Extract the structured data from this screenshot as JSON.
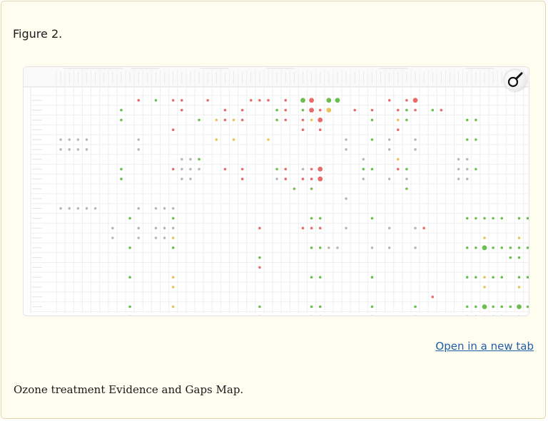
{
  "figure": {
    "label": "Figure 2.",
    "caption": "Ozone treatment Evidence and Gaps Map.",
    "open_link": "Open in a new tab",
    "zoom_icon": "magnifier-icon"
  },
  "colors": {
    "green": "#6cbf4f",
    "red": "#e86b6b",
    "yellow": "#e8c35a",
    "grey": "#b8b8b8",
    "link": "#1f5ea8"
  },
  "chart_data": {
    "type": "scatter",
    "grid": true,
    "dots": [
      [
        1,
        10,
        "r",
        1
      ],
      [
        1,
        12,
        "g",
        1
      ],
      [
        1,
        14,
        "r",
        1
      ],
      [
        1,
        15,
        "r",
        1
      ],
      [
        1,
        18,
        "r",
        1
      ],
      [
        1,
        23,
        "r",
        1
      ],
      [
        1,
        24,
        "r",
        1
      ],
      [
        1,
        25,
        "r",
        1
      ],
      [
        1,
        27,
        "r",
        1
      ],
      [
        1,
        29,
        "g",
        2
      ],
      [
        1,
        30,
        "r",
        2
      ],
      [
        1,
        32,
        "g",
        2
      ],
      [
        1,
        33,
        "g",
        2
      ],
      [
        1,
        39,
        "r",
        1
      ],
      [
        1,
        41,
        "r",
        1
      ],
      [
        1,
        42,
        "r",
        2
      ],
      [
        2,
        8,
        "g",
        1
      ],
      [
        2,
        15,
        "r",
        1
      ],
      [
        2,
        20,
        "r",
        1
      ],
      [
        2,
        22,
        "r",
        1
      ],
      [
        2,
        26,
        "g",
        1
      ],
      [
        2,
        27,
        "r",
        1
      ],
      [
        2,
        29,
        "g",
        1
      ],
      [
        2,
        30,
        "r",
        2
      ],
      [
        2,
        31,
        "r",
        1
      ],
      [
        2,
        32,
        "y",
        2
      ],
      [
        2,
        35,
        "r",
        1
      ],
      [
        2,
        37,
        "r",
        1
      ],
      [
        2,
        40,
        "r",
        1
      ],
      [
        2,
        41,
        "g",
        1
      ],
      [
        2,
        42,
        "r",
        1
      ],
      [
        2,
        44,
        "g",
        1
      ],
      [
        2,
        45,
        "r",
        1
      ],
      [
        3,
        8,
        "g",
        1
      ],
      [
        3,
        17,
        "g",
        1
      ],
      [
        3,
        19,
        "y",
        1
      ],
      [
        3,
        20,
        "r",
        1
      ],
      [
        3,
        21,
        "y",
        1
      ],
      [
        3,
        22,
        "r",
        1
      ],
      [
        3,
        26,
        "g",
        1
      ],
      [
        3,
        27,
        "r",
        1
      ],
      [
        3,
        29,
        "r",
        1
      ],
      [
        3,
        30,
        "y",
        1
      ],
      [
        3,
        31,
        "r",
        2
      ],
      [
        3,
        37,
        "g",
        1
      ],
      [
        3,
        40,
        "y",
        1
      ],
      [
        3,
        41,
        "g",
        1
      ],
      [
        3,
        48,
        "g",
        1
      ],
      [
        3,
        49,
        "g",
        1
      ],
      [
        4,
        14,
        "r",
        1
      ],
      [
        4,
        29,
        "r",
        1
      ],
      [
        4,
        31,
        "r",
        1
      ],
      [
        4,
        40,
        "r",
        1
      ],
      [
        5,
        1,
        "gr",
        1
      ],
      [
        5,
        2,
        "gr",
        1
      ],
      [
        5,
        3,
        "gr",
        1
      ],
      [
        5,
        4,
        "gr",
        1
      ],
      [
        5,
        10,
        "gr",
        1
      ],
      [
        5,
        19,
        "y",
        1
      ],
      [
        5,
        21,
        "y",
        1
      ],
      [
        5,
        25,
        "y",
        1
      ],
      [
        5,
        34,
        "gr",
        1
      ],
      [
        5,
        37,
        "g",
        1
      ],
      [
        5,
        39,
        "gr",
        1
      ],
      [
        5,
        42,
        "gr",
        1
      ],
      [
        5,
        48,
        "g",
        1
      ],
      [
        5,
        49,
        "g",
        1
      ],
      [
        6,
        1,
        "gr",
        1
      ],
      [
        6,
        2,
        "gr",
        1
      ],
      [
        6,
        3,
        "gr",
        1
      ],
      [
        6,
        4,
        "gr",
        1
      ],
      [
        6,
        10,
        "gr",
        1
      ],
      [
        6,
        34,
        "gr",
        1
      ],
      [
        6,
        39,
        "gr",
        1
      ],
      [
        6,
        42,
        "gr",
        1
      ],
      [
        7,
        15,
        "gr",
        1
      ],
      [
        7,
        16,
        "gr",
        1
      ],
      [
        7,
        17,
        "g",
        1
      ],
      [
        7,
        36,
        "gr",
        1
      ],
      [
        7,
        40,
        "y",
        1
      ],
      [
        7,
        47,
        "gr",
        1
      ],
      [
        7,
        48,
        "gr",
        1
      ],
      [
        8,
        8,
        "g",
        1
      ],
      [
        8,
        14,
        "r",
        1
      ],
      [
        8,
        15,
        "gr",
        1
      ],
      [
        8,
        16,
        "gr",
        1
      ],
      [
        8,
        17,
        "gr",
        1
      ],
      [
        8,
        20,
        "r",
        1
      ],
      [
        8,
        22,
        "r",
        1
      ],
      [
        8,
        26,
        "g",
        1
      ],
      [
        8,
        27,
        "r",
        1
      ],
      [
        8,
        29,
        "gr",
        1
      ],
      [
        8,
        30,
        "r",
        1
      ],
      [
        8,
        31,
        "r",
        2
      ],
      [
        8,
        36,
        "g",
        1
      ],
      [
        8,
        37,
        "g",
        1
      ],
      [
        8,
        40,
        "r",
        1
      ],
      [
        8,
        41,
        "g",
        1
      ],
      [
        8,
        47,
        "gr",
        1
      ],
      [
        8,
        48,
        "gr",
        1
      ],
      [
        8,
        49,
        "g",
        1
      ],
      [
        9,
        8,
        "g",
        1
      ],
      [
        9,
        15,
        "gr",
        1
      ],
      [
        9,
        16,
        "gr",
        1
      ],
      [
        9,
        22,
        "r",
        1
      ],
      [
        9,
        26,
        "gr",
        1
      ],
      [
        9,
        27,
        "r",
        1
      ],
      [
        9,
        29,
        "r",
        1
      ],
      [
        9,
        30,
        "r",
        1
      ],
      [
        9,
        31,
        "r",
        2
      ],
      [
        9,
        36,
        "gr",
        1
      ],
      [
        9,
        39,
        "gr",
        1
      ],
      [
        9,
        41,
        "gr",
        1
      ],
      [
        9,
        47,
        "gr",
        1
      ],
      [
        9,
        48,
        "gr",
        1
      ],
      [
        10,
        28,
        "g",
        1
      ],
      [
        10,
        30,
        "g",
        1
      ],
      [
        10,
        41,
        "g",
        1
      ],
      [
        11,
        34,
        "gr",
        1
      ],
      [
        12,
        1,
        "gr",
        1
      ],
      [
        12,
        2,
        "gr",
        1
      ],
      [
        12,
        3,
        "gr",
        1
      ],
      [
        12,
        4,
        "gr",
        1
      ],
      [
        12,
        5,
        "gr",
        1
      ],
      [
        12,
        10,
        "gr",
        1
      ],
      [
        12,
        12,
        "gr",
        1
      ],
      [
        12,
        13,
        "gr",
        1
      ],
      [
        12,
        14,
        "gr",
        1
      ],
      [
        13,
        9,
        "g",
        1
      ],
      [
        13,
        14,
        "g",
        1
      ],
      [
        13,
        30,
        "g",
        1
      ],
      [
        13,
        31,
        "g",
        1
      ],
      [
        13,
        37,
        "g",
        1
      ],
      [
        13,
        48,
        "g",
        1
      ],
      [
        13,
        49,
        "g",
        1
      ],
      [
        13,
        50,
        "g",
        1
      ],
      [
        13,
        51,
        "g",
        1
      ],
      [
        13,
        52,
        "g",
        1
      ],
      [
        13,
        54,
        "g",
        1
      ],
      [
        13,
        55,
        "g",
        1
      ],
      [
        13,
        57,
        "g",
        1
      ],
      [
        14,
        7,
        "gr",
        1
      ],
      [
        14,
        10,
        "gr",
        1
      ],
      [
        14,
        12,
        "gr",
        1
      ],
      [
        14,
        13,
        "gr",
        1
      ],
      [
        14,
        14,
        "gr",
        1
      ],
      [
        14,
        24,
        "r",
        1
      ],
      [
        14,
        29,
        "r",
        1
      ],
      [
        14,
        30,
        "r",
        1
      ],
      [
        14,
        31,
        "r",
        1
      ],
      [
        14,
        34,
        "gr",
        1
      ],
      [
        14,
        39,
        "gr",
        1
      ],
      [
        14,
        42,
        "gr",
        1
      ],
      [
        14,
        43,
        "r",
        1
      ],
      [
        15,
        7,
        "gr",
        1
      ],
      [
        15,
        10,
        "gr",
        1
      ],
      [
        15,
        12,
        "gr",
        1
      ],
      [
        15,
        13,
        "gr",
        1
      ],
      [
        15,
        14,
        "y",
        1
      ],
      [
        15,
        50,
        "y",
        1
      ],
      [
        15,
        54,
        "y",
        1
      ],
      [
        16,
        9,
        "g",
        1
      ],
      [
        16,
        14,
        "g",
        1
      ],
      [
        16,
        30,
        "g",
        1
      ],
      [
        16,
        31,
        "g",
        1
      ],
      [
        16,
        32,
        "gr",
        1
      ],
      [
        16,
        33,
        "gr",
        1
      ],
      [
        16,
        37,
        "gr",
        1
      ],
      [
        16,
        39,
        "gr",
        1
      ],
      [
        16,
        42,
        "gr",
        1
      ],
      [
        16,
        48,
        "g",
        1
      ],
      [
        16,
        49,
        "g",
        1
      ],
      [
        16,
        50,
        "g",
        2
      ],
      [
        16,
        51,
        "g",
        1
      ],
      [
        16,
        52,
        "g",
        1
      ],
      [
        16,
        53,
        "g",
        1
      ],
      [
        16,
        54,
        "g",
        1
      ],
      [
        16,
        55,
        "g",
        1
      ],
      [
        16,
        56,
        "g",
        2
      ],
      [
        16,
        57,
        "g",
        2
      ],
      [
        17,
        24,
        "g",
        1
      ],
      [
        17,
        53,
        "g",
        1
      ],
      [
        17,
        54,
        "g",
        1
      ],
      [
        17,
        56,
        "g",
        1
      ],
      [
        18,
        24,
        "r",
        1
      ],
      [
        19,
        9,
        "g",
        1
      ],
      [
        19,
        14,
        "y",
        1
      ],
      [
        19,
        30,
        "g",
        1
      ],
      [
        19,
        31,
        "g",
        1
      ],
      [
        19,
        37,
        "g",
        1
      ],
      [
        19,
        48,
        "g",
        1
      ],
      [
        19,
        49,
        "g",
        1
      ],
      [
        19,
        50,
        "y",
        1
      ],
      [
        19,
        51,
        "g",
        1
      ],
      [
        19,
        52,
        "g",
        1
      ],
      [
        19,
        54,
        "g",
        1
      ],
      [
        19,
        55,
        "g",
        1
      ],
      [
        19,
        57,
        "g",
        1
      ],
      [
        20,
        14,
        "y",
        1
      ],
      [
        20,
        50,
        "y",
        1
      ],
      [
        20,
        54,
        "y",
        1
      ],
      [
        21,
        44,
        "r",
        1
      ],
      [
        22,
        9,
        "g",
        1
      ],
      [
        22,
        14,
        "y",
        1
      ],
      [
        22,
        24,
        "g",
        1
      ],
      [
        22,
        30,
        "g",
        1
      ],
      [
        22,
        31,
        "g",
        1
      ],
      [
        22,
        37,
        "g",
        1
      ],
      [
        22,
        42,
        "g",
        1
      ],
      [
        22,
        48,
        "g",
        1
      ],
      [
        22,
        49,
        "g",
        1
      ],
      [
        22,
        50,
        "g",
        2
      ],
      [
        22,
        51,
        "g",
        1
      ],
      [
        22,
        52,
        "g",
        1
      ],
      [
        22,
        53,
        "g",
        1
      ],
      [
        22,
        54,
        "g",
        2
      ],
      [
        22,
        55,
        "g",
        1
      ],
      [
        22,
        56,
        "g",
        2
      ],
      [
        22,
        57,
        "g",
        2
      ],
      [
        23,
        9,
        "g",
        1
      ],
      [
        23,
        14,
        "y",
        1
      ],
      [
        23,
        24,
        "r",
        1
      ],
      [
        23,
        30,
        "g",
        1
      ],
      [
        23,
        31,
        "g",
        1
      ],
      [
        23,
        37,
        "g",
        1
      ],
      [
        23,
        42,
        "g",
        1
      ],
      [
        23,
        48,
        "g",
        1
      ],
      [
        23,
        49,
        "g",
        1
      ],
      [
        23,
        50,
        "y",
        1
      ],
      [
        23,
        51,
        "g",
        1
      ],
      [
        23,
        52,
        "g",
        1
      ],
      [
        23,
        54,
        "g",
        1
      ],
      [
        23,
        55,
        "g",
        1
      ],
      [
        23,
        56,
        "g",
        1
      ],
      [
        23,
        57,
        "g",
        1
      ]
    ]
  }
}
